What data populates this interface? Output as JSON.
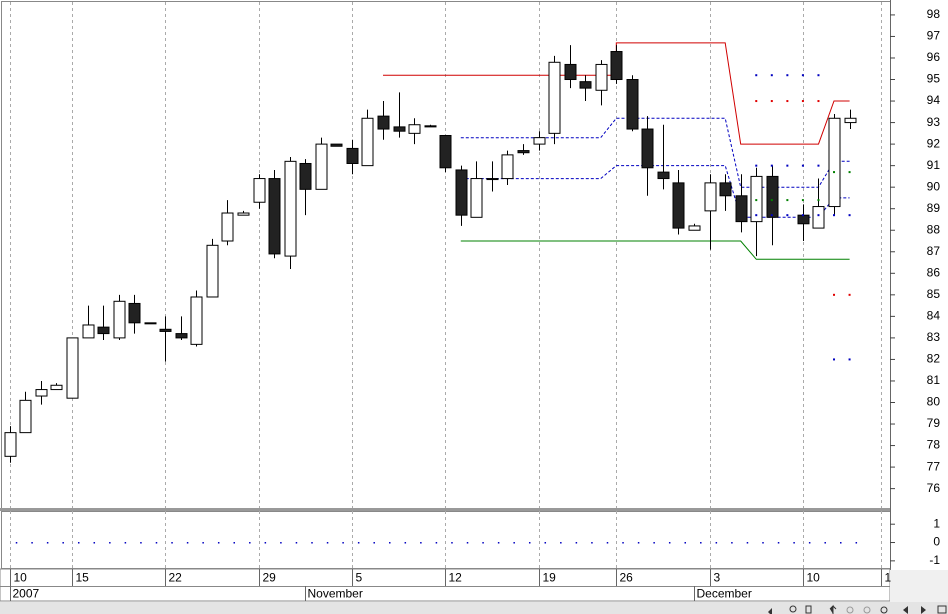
{
  "chart_data": [
    {
      "type": "candlestick",
      "x": [
        0,
        1,
        2,
        3,
        4,
        5,
        6,
        7,
        8,
        9,
        10,
        11,
        12,
        13,
        14,
        15,
        16,
        17,
        18,
        19,
        20,
        21,
        22,
        23,
        24,
        25,
        26,
        27,
        28,
        29,
        30,
        31,
        32,
        33,
        34,
        35,
        36,
        37,
        38,
        39,
        40,
        41,
        42,
        43,
        44,
        45,
        46,
        47,
        48,
        49,
        51,
        52,
        53,
        54
      ],
      "open": [
        77.5,
        78.6,
        80.3,
        80.6,
        80.2,
        83.0,
        83.5,
        83.0,
        84.6,
        83.7,
        83.4,
        83.2,
        82.7,
        84.9,
        87.5,
        88.7,
        89.3,
        90.4,
        86.8,
        91.1,
        89.9,
        92.0,
        91.8,
        91.0,
        93.3,
        92.8,
        92.5,
        92.85,
        92.4,
        90.8,
        88.6,
        90.4,
        90.4,
        91.7,
        92.0,
        92.5,
        95.7,
        94.9,
        94.5,
        96.3,
        95.0,
        92.7,
        90.7,
        90.2,
        88.0,
        88.9,
        90.2,
        89.6,
        88.4,
        90.5,
        88.7,
        88.1,
        89.1,
        93.0
      ],
      "high": [
        78.9,
        80.5,
        81.0,
        80.9,
        83.0,
        84.5,
        84.5,
        85.0,
        85.0,
        83.7,
        84.0,
        84.0,
        85.2,
        87.6,
        89.4,
        88.9,
        90.6,
        90.8,
        91.4,
        91.3,
        92.3,
        92.0,
        92.2,
        93.6,
        94.0,
        94.4,
        93.2,
        92.9,
        92.4,
        91.0,
        91.2,
        91.2,
        91.7,
        92.0,
        92.6,
        96.1,
        96.6,
        95.2,
        95.9,
        96.6,
        95.2,
        93.3,
        92.9,
        90.8,
        88.3,
        90.6,
        90.6,
        90.6,
        90.9,
        91.0,
        89.2,
        90.4,
        93.4,
        93.6
      ],
      "low": [
        77.2,
        78.6,
        79.9,
        80.6,
        80.2,
        83.0,
        82.9,
        82.9,
        83.2,
        83.7,
        81.9,
        82.9,
        82.6,
        84.9,
        87.3,
        88.7,
        89.0,
        86.7,
        86.2,
        88.7,
        89.9,
        91.9,
        90.6,
        91.0,
        92.2,
        92.3,
        92.0,
        92.8,
        90.7,
        88.2,
        88.6,
        89.8,
        90.1,
        91.5,
        91.7,
        92.0,
        94.6,
        94.0,
        93.8,
        94.8,
        92.6,
        89.6,
        89.9,
        87.8,
        88.0,
        87.1,
        88.9,
        87.9,
        86.8,
        87.3,
        87.5,
        88.1,
        88.7,
        92.7
      ],
      "close": [
        78.6,
        80.1,
        80.6,
        80.8,
        83.0,
        83.6,
        83.2,
        84.7,
        83.7,
        83.7,
        83.3,
        83.0,
        84.9,
        87.3,
        88.8,
        88.8,
        90.4,
        86.9,
        91.2,
        89.9,
        92.0,
        91.9,
        91.1,
        93.2,
        92.7,
        92.6,
        92.9,
        92.8,
        90.9,
        88.7,
        90.4,
        90.4,
        91.5,
        91.6,
        92.3,
        95.8,
        95.0,
        94.6,
        95.7,
        95.0,
        92.7,
        90.9,
        90.4,
        88.1,
        88.2,
        90.2,
        89.6,
        88.4,
        90.5,
        88.6,
        88.3,
        89.1,
        93.2,
        93.2
      ],
      "lines": [
        {
          "color": "#d00000",
          "style": "solid",
          "x": [
            24,
            39,
            39,
            46,
            47,
            52,
            53,
            54
          ],
          "values": [
            95.2,
            95.2,
            96.7,
            96.7,
            92.0,
            92.0,
            94.0,
            94.0
          ]
        },
        {
          "color": "#0000c0",
          "style": "dashed",
          "x": [
            29,
            38,
            39,
            46,
            47,
            52,
            53,
            54
          ],
          "values": [
            92.3,
            92.3,
            93.2,
            93.2,
            90.0,
            90.0,
            91.2,
            91.2
          ]
        },
        {
          "color": "#0000c0",
          "style": "dashed",
          "x": [
            29,
            38,
            39,
            46,
            47,
            52,
            53,
            54
          ],
          "values": [
            90.4,
            90.4,
            91.0,
            91.0,
            88.6,
            88.6,
            89.5,
            89.5
          ]
        },
        {
          "color": "#008000",
          "style": "solid",
          "x": [
            29,
            47,
            48,
            54
          ],
          "values": [
            87.5,
            87.5,
            86.65,
            86.65
          ]
        }
      ],
      "dots": [
        {
          "color": "#0000c0",
          "x": [
            48,
            49,
            50,
            51,
            52
          ],
          "values": [
            95.2,
            95.2,
            95.2,
            95.2,
            95.2
          ]
        },
        {
          "color": "#e00000",
          "x": [
            48,
            49,
            50,
            51,
            52
          ],
          "values": [
            94.0,
            94.0,
            94.0,
            94.0,
            94.0
          ]
        },
        {
          "color": "#0000c0",
          "x": [
            48,
            49,
            50,
            51,
            52
          ],
          "values": [
            91.0,
            91.0,
            91.0,
            91.0,
            91.0
          ]
        },
        {
          "color": "#008000",
          "x": [
            48,
            49,
            50,
            51,
            52,
            53,
            54
          ],
          "values": [
            89.4,
            89.4,
            89.4,
            89.4,
            89.4,
            90.7,
            90.7
          ]
        },
        {
          "color": "#0000c0",
          "x": [
            48,
            49,
            50,
            51,
            52,
            53,
            54
          ],
          "values": [
            88.7,
            88.7,
            88.7,
            88.7,
            88.7,
            88.7,
            88.7
          ]
        },
        {
          "color": "#e00000",
          "x": [
            53,
            54
          ],
          "values": [
            85.0,
            85.0
          ]
        },
        {
          "color": "#0000c0",
          "x": [
            53,
            54
          ],
          "values": [
            82.0,
            82.0
          ]
        }
      ],
      "xlim": [
        -0.5,
        56.6
      ],
      "ylim": [
        75.1,
        98.6
      ],
      "yticks": [
        76,
        77,
        78,
        79,
        80,
        81,
        82,
        83,
        84,
        85,
        86,
        87,
        88,
        89,
        90,
        91,
        92,
        93,
        94,
        95,
        96,
        97,
        98
      ],
      "grid": true
    },
    {
      "type": "scatter",
      "color": "#0000c0",
      "x": [
        0,
        1,
        2,
        3,
        4,
        5,
        6,
        7,
        8,
        9,
        10,
        11,
        12,
        13,
        14,
        15,
        16,
        17,
        18,
        19,
        20,
        21,
        22,
        23,
        24,
        25,
        26,
        27,
        28,
        29,
        30,
        31,
        32,
        33,
        34,
        35,
        36,
        37,
        38,
        39,
        40,
        41,
        42,
        43,
        44,
        45,
        46,
        47,
        48,
        49,
        50,
        51,
        52,
        53,
        54
      ],
      "values": [
        0,
        0,
        0,
        0,
        0,
        0,
        0,
        0,
        0,
        0,
        0,
        0,
        0,
        0,
        0,
        0,
        0,
        0,
        0,
        0,
        0,
        0,
        0,
        0,
        0,
        0,
        0,
        0,
        0,
        0,
        0,
        0,
        0,
        0,
        0,
        0,
        0,
        0,
        0,
        0,
        0,
        0,
        0,
        0,
        0,
        0,
        0,
        0,
        0,
        0,
        0,
        0,
        0,
        0,
        0
      ],
      "xlim": [
        -0.5,
        56.6
      ],
      "ylim": [
        -1.39,
        1.72
      ],
      "yticks": [
        1,
        0,
        -1
      ],
      "xticks": [
        {
          "value": 0,
          "label": "10"
        },
        {
          "value": 4,
          "label": "15"
        },
        {
          "value": 10,
          "label": "22"
        },
        {
          "value": 16,
          "label": "29"
        },
        {
          "value": 22,
          "label": "5"
        },
        {
          "value": 28,
          "label": "12"
        },
        {
          "value": 34,
          "label": "19"
        },
        {
          "value": 39,
          "label": "26"
        },
        {
          "value": 45,
          "label": "3"
        },
        {
          "value": 51,
          "label": "10"
        },
        {
          "value": 56,
          "label": "1"
        }
      ],
      "month_ticks": [
        {
          "value": 0,
          "label": "2007"
        },
        {
          "value": 19,
          "label": "November"
        },
        {
          "value": 44,
          "label": "December"
        }
      ],
      "grid": true
    }
  ]
}
